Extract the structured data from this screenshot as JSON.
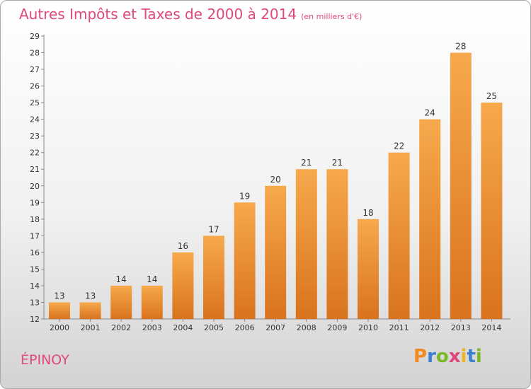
{
  "title": "Autres Impôts et Taxes de 2000 à 2014",
  "unit": "(en milliers d'€)",
  "commune": "ÉPINOY",
  "logo": {
    "letters": [
      "P",
      "r",
      "o",
      "x",
      "i",
      "t",
      "i"
    ],
    "colors": [
      "#f08a1c",
      "#3a7fd0",
      "#7ab828",
      "#e0487a",
      "#f0b41c",
      "#3a7fd0",
      "#7ab828"
    ]
  },
  "colors": {
    "bar_light": "#f7a94c",
    "bar_dark": "#d9731d",
    "title": "#e0487a"
  },
  "chart_data": {
    "type": "bar",
    "categories": [
      "2000",
      "2001",
      "2002",
      "2003",
      "2004",
      "2005",
      "2006",
      "2007",
      "2008",
      "2009",
      "2010",
      "2011",
      "2012",
      "2013",
      "2014"
    ],
    "values": [
      13,
      13,
      14,
      14,
      16,
      17,
      19,
      20,
      21,
      21,
      18,
      22,
      24,
      28,
      25
    ],
    "ylim": [
      12,
      29
    ],
    "yticks": [
      12,
      13,
      14,
      15,
      16,
      17,
      18,
      19,
      20,
      21,
      22,
      23,
      24,
      25,
      26,
      27,
      28,
      29
    ],
    "grid": false,
    "legend": "none"
  }
}
